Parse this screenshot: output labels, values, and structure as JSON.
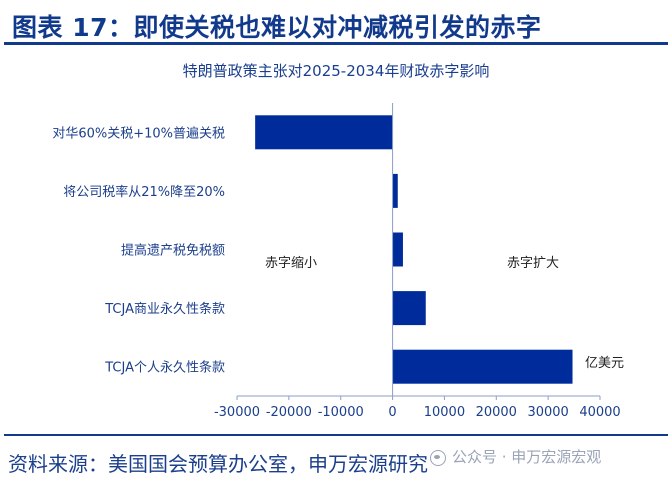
{
  "header": {
    "title": "图表 17：即使关税也难以对冲减税引发的赤字"
  },
  "chart_data": {
    "type": "bar",
    "orientation": "horizontal",
    "title": "特朗普政策主张对2025-2034年财政赤字影响",
    "categories": [
      "对华60%关税+10%普遍关税",
      "将公司税率从21%降至20%",
      "提高遗产税免税额",
      "TCJA商业永久性条款",
      "TCJA个人永久性条款"
    ],
    "values": [
      -26500,
      1000,
      2000,
      6400,
      34700
    ],
    "xlim": [
      -30000,
      40000
    ],
    "xticks": [
      -30000,
      -20000,
      -10000,
      0,
      10000,
      20000,
      30000,
      40000
    ],
    "xtick_labels": [
      "-30000",
      "-20000",
      "-10000",
      "0",
      "10000",
      "20000",
      "30000",
      "40000"
    ],
    "annotations": {
      "left": "赤字缩小",
      "right": "赤字扩大",
      "unit": "亿美元"
    },
    "bar_color": "#002b9a",
    "grid": false
  },
  "footer": {
    "source": "资料来源：美国国会预算办公室，申万宏源研究",
    "watermark": "公众号 · 申万宏源宏观"
  }
}
